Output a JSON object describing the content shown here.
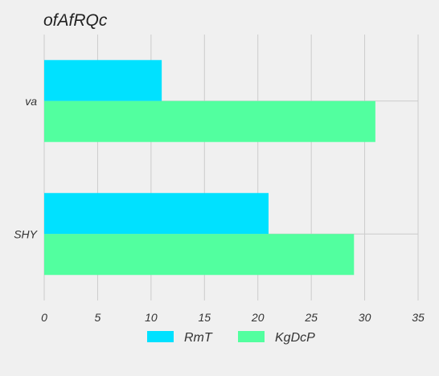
{
  "chart_data": {
    "type": "bar",
    "orientation": "horizontal",
    "title": "ofAfRQc",
    "xlabel": "",
    "ylabel": "",
    "categories": [
      "va",
      "SHY"
    ],
    "series": [
      {
        "name": "RmT",
        "values": [
          11,
          21
        ],
        "color": "#00e1ff"
      },
      {
        "name": "KgDcP",
        "values": [
          31,
          29
        ],
        "color": "#52ff9f"
      }
    ],
    "xlim": [
      0,
      35
    ],
    "xticks": [
      0,
      5,
      10,
      15,
      20,
      25,
      30,
      35
    ],
    "grid": true,
    "legend": "bottom"
  }
}
